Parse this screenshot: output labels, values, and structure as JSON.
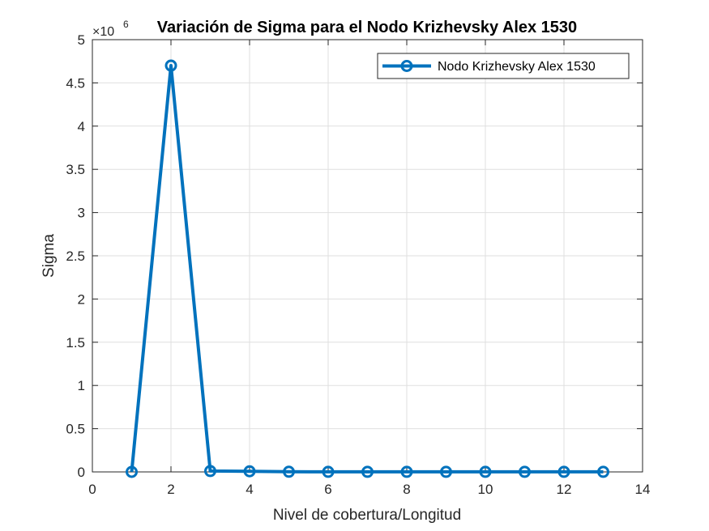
{
  "chart_data": {
    "type": "line",
    "title": "Variación de Sigma para el Nodo Krizhevsky Alex 1530",
    "xlabel": "Nivel de cobertura/Longitud",
    "ylabel": "Sigma",
    "xlim": [
      0,
      14
    ],
    "ylim": [
      0,
      5
    ],
    "x_ticks": [
      "0",
      "2",
      "4",
      "6",
      "8",
      "10",
      "12",
      "14"
    ],
    "y_ticks": [
      "0",
      "0.5",
      "1",
      "1.5",
      "2",
      "2.5",
      "3",
      "3.5",
      "4",
      "4.5",
      "5"
    ],
    "y_exponent_label": "×10",
    "y_exponent_power": "6",
    "grid": true,
    "legend_position": "top-right",
    "series": [
      {
        "name": "Nodo Krizhevsky Alex 1530",
        "color": "#0072BD",
        "marker": "circle",
        "x": [
          1,
          2,
          3,
          4,
          5,
          6,
          7,
          8,
          9,
          10,
          11,
          12,
          13
        ],
        "y": [
          0,
          4.7,
          0.01,
          0.007,
          0.002,
          0.001,
          0.001,
          0.001,
          0.001,
          0.001,
          0.001,
          0.001,
          0.001
        ]
      }
    ]
  }
}
